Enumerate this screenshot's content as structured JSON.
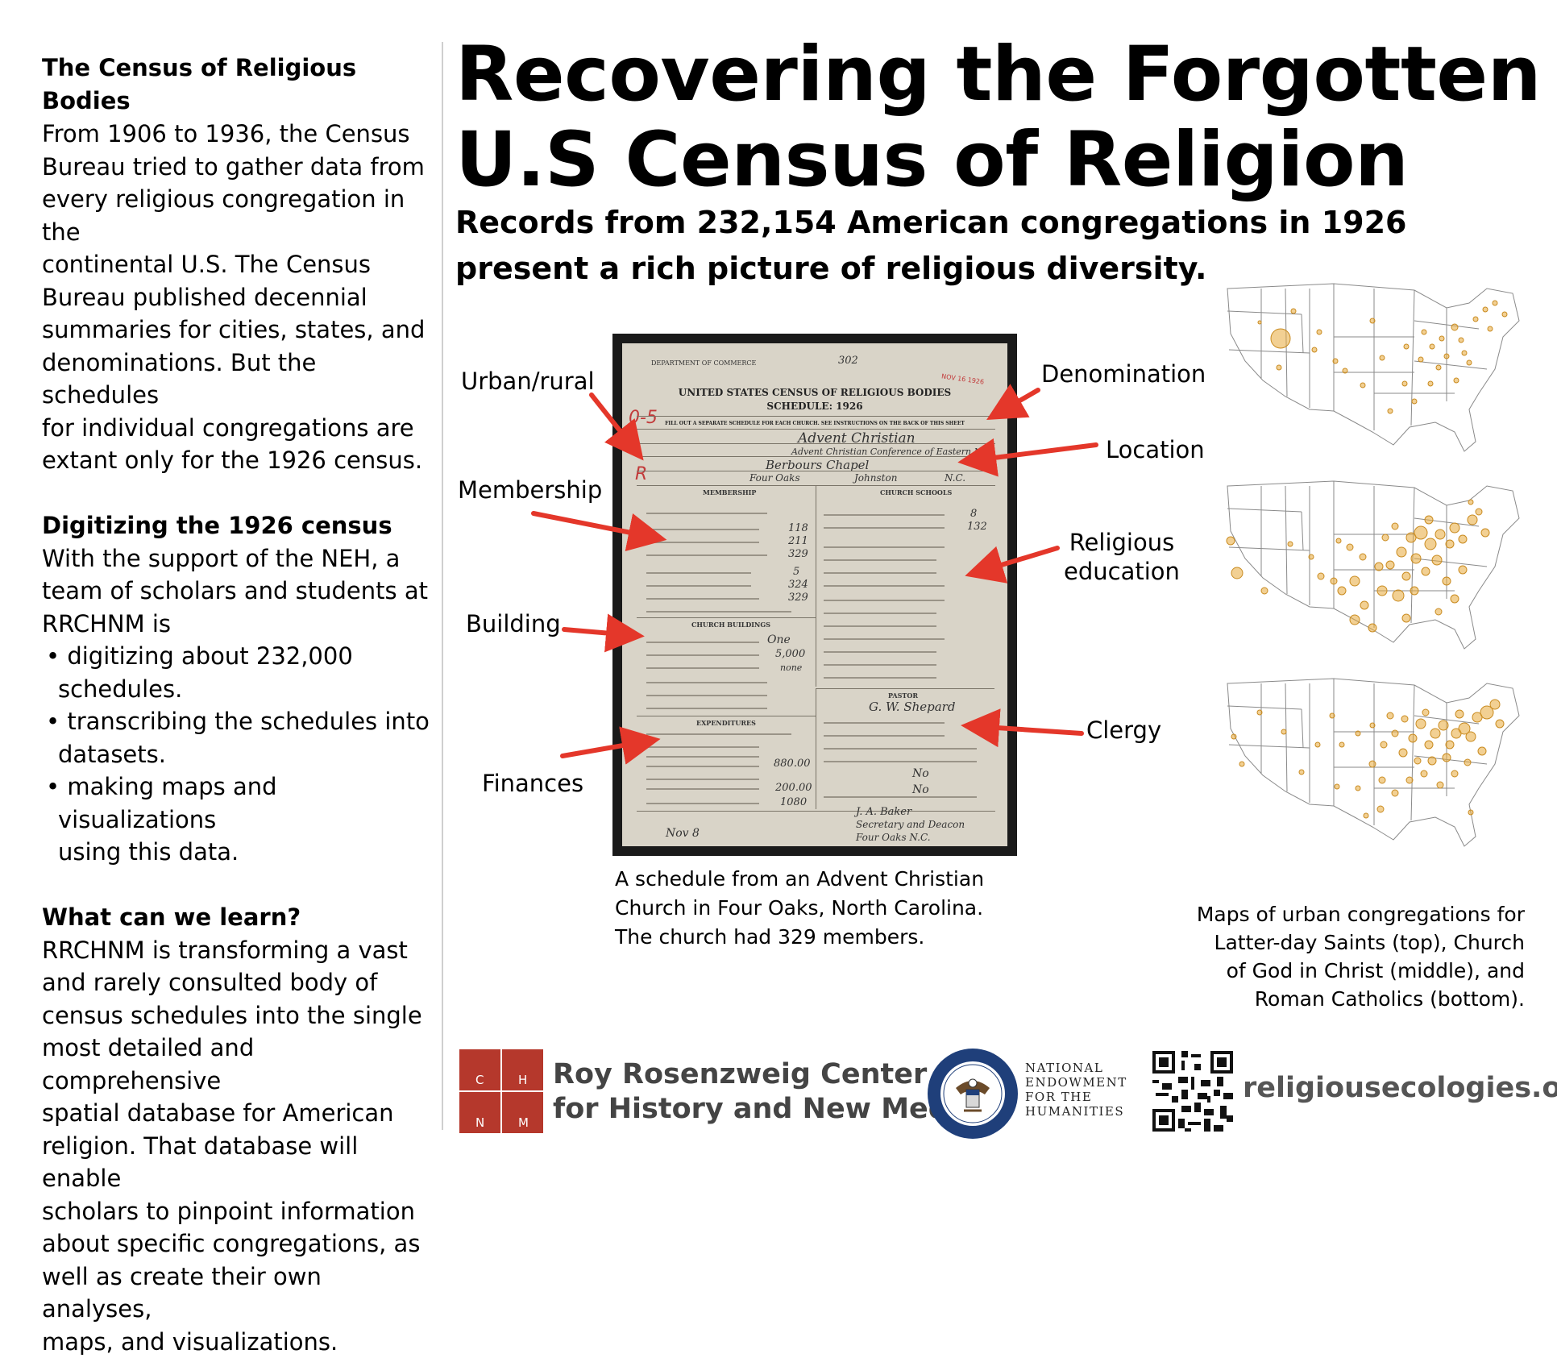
{
  "left": {
    "s1": {
      "heading": "The Census of Religious Bodies",
      "lines": [
        "From 1906 to 1936, the Census",
        "Bureau tried to gather data from",
        "every religious congregation in the",
        "continental U.S. The Census",
        "Bureau published decennial",
        "summaries for cities, states, and",
        "denominations. But the schedules",
        "for individual congregations are",
        "extant only for the 1926 census."
      ]
    },
    "s2": {
      "heading": "Digitizing the 1926 census",
      "lines": [
        "With the support of the NEH, a",
        "team of scholars and students at",
        "RRCHNM is"
      ],
      "bullets": [
        [
          "digitizing about 232,000",
          "schedules."
        ],
        [
          "transcribing the schedules into",
          "datasets."
        ],
        [
          "making maps and visualizations",
          "using this data."
        ]
      ]
    },
    "s3": {
      "heading": "What can we learn?",
      "lines": [
        "RRCHNM is transforming a vast",
        "and rarely consulted body of",
        "census schedules into the single",
        "most detailed and comprehensive",
        "spatial database for American",
        "religion. That database will enable",
        "scholars to pinpoint information",
        "about specific congregations, as",
        "well as create their own analyses,",
        "maps, and visualizations."
      ]
    }
  },
  "title": {
    "line1": "Recovering the Forgotten",
    "line2": "U.S Census of Religion"
  },
  "subtitle": {
    "line1": "Records from 232,154 American congregations in 1926",
    "line2": "present a rich picture of religious diversity."
  },
  "schedule_doc": {
    "dept": "DEPARTMENT OF COMMERCE",
    "title": "UNITED STATES CENSUS OF RELIGIOUS BODIES",
    "schedule": "SCHEDULE: 1926",
    "instruction": "FILL OUT A SEPARATE SCHEDULE FOR EACH CHURCH.   SEE INSTRUCTIONS ON THE BACK OF THIS SHEET",
    "membership_head": "MEMBERSHIP",
    "schools_head": "CHURCH SCHOOLS",
    "buildings_head": "CHURCH BUILDINGS",
    "pastor_head": "PASTOR",
    "expenditures_head": "EXPENDITURES",
    "denomination_value": "Advent Christian",
    "conference_value": "Advent Christian Conference of Eastern N.C.",
    "church_name_value": "Berbours Chapel",
    "city_value": "Four Oaks",
    "county_value": "Johnston",
    "state_value": "N.C.",
    "males": "118",
    "females": "211",
    "total_members": "329",
    "under13": "5",
    "over13": "324",
    "total2": "329",
    "officers_teachers": "8",
    "scholars": "132",
    "edifices": "One",
    "value_edifices": "5,000",
    "debt": "none",
    "pastor_name": "G. W. Shepard",
    "expended1": "880.00",
    "expended2": "200.00",
    "total_expended": "1080",
    "signature": "J. A. Baker",
    "official_title": "Secretary and Deacon",
    "date_value": "Nov 8",
    "po_address": "Four Oaks N.C.",
    "stamp": "NOV 16 1926",
    "serial": "302",
    "code": "0-5"
  },
  "labels": {
    "urban_rural": "Urban/rural",
    "membership": "Membership",
    "building": "Building",
    "finances": "Finances",
    "denomination": "Denomination",
    "location": "Location",
    "religious_education_1": "Religious",
    "religious_education_2": "education",
    "clergy": "Clergy"
  },
  "captions": {
    "schedule": [
      "A schedule from an Advent Christian",
      "Church in Four Oaks, North Carolina.",
      "The church had 329 members."
    ],
    "maps": [
      "Maps of urban congregations for",
      "Latter-day Saints (top), Church",
      "of God in Christ (middle), and",
      "Roman Catholics (bottom)."
    ]
  },
  "footer": {
    "logo_letters": [
      "C",
      "H",
      "N",
      "M"
    ],
    "center_line1": "Roy Rosenzweig Center",
    "center_line2": "for History and New Media",
    "neh_lines": [
      "NATIONAL",
      "ENDOWMENT",
      "FOR THE",
      "HUMANITIES"
    ],
    "website": "religiousecologies.org"
  },
  "colors": {
    "arrow": "#e4372a",
    "map_dot": "#e8a93a",
    "logo_red": "#b5382c"
  }
}
